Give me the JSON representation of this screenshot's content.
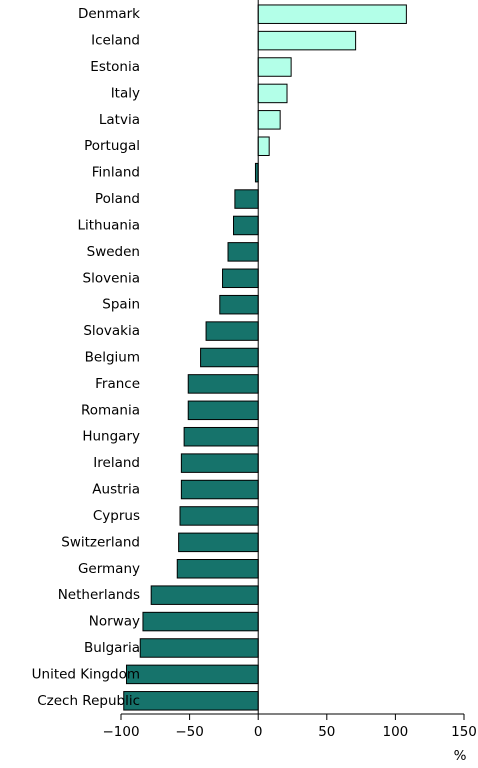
{
  "chart_data": {
    "type": "bar",
    "orientation": "horizontal",
    "title": "",
    "xlabel": "",
    "ylabel": "",
    "unit_label": "%",
    "categories": [
      "Denmark",
      "Iceland",
      "Estonia",
      "Italy",
      "Latvia",
      "Portugal",
      "Finland",
      "Poland",
      "Lithuania",
      "Sweden",
      "Slovenia",
      "Spain",
      "Slovakia",
      "Belgium",
      "France",
      "Romania",
      "Hungary",
      "Ireland",
      "Austria",
      "Cyprus",
      "Switzerland",
      "Germany",
      "Netherlands",
      "Norway",
      "Bulgaria",
      "United Kingdom",
      "Czech Republic"
    ],
    "values": [
      108,
      71,
      24,
      21,
      16,
      8,
      -2,
      -17,
      -18,
      -22,
      -26,
      -28,
      -38,
      -42,
      -51,
      -51,
      -54,
      -56,
      -56,
      -57,
      -58,
      -59,
      -78,
      -84,
      -86,
      -96,
      -98
    ],
    "xlim": [
      -100,
      150
    ],
    "xticks": [
      -100,
      -50,
      0,
      50,
      100,
      150
    ],
    "xtick_labels": [
      "−100",
      "−50",
      "0",
      "50",
      "100",
      "150"
    ],
    "grid": false,
    "colors": {
      "positive_fill": "#b3ffe8",
      "negative_fill": "#16736b",
      "bar_stroke": "#000000",
      "axis": "#000000"
    }
  }
}
